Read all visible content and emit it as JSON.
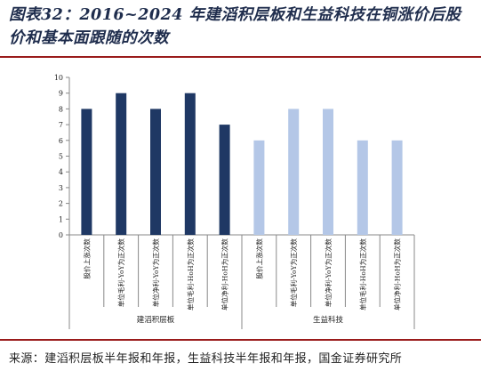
{
  "figure": {
    "title": "图表32：2016~2024 年建滔积层板和生益科技在铜涨价后股价和基本面跟随的次数",
    "source": "来源：建滔积层板半年报和年报，生益科技半年报和年报，国金证券研究所"
  },
  "chart_data": {
    "type": "bar",
    "title": "",
    "xlabel": "",
    "ylabel": "",
    "ylim": [
      0,
      10
    ],
    "yticks": [
      0,
      1,
      2,
      3,
      4,
      5,
      6,
      7,
      8,
      9,
      10
    ],
    "grid": false,
    "legend": "none",
    "groups": [
      {
        "name": "建滔积层板",
        "color": "#1f3864",
        "categories": [
          "股价上涨次数",
          "单位毛利-YoY为正次数",
          "单位净利-YoY为正次数",
          "单位毛利-HoH为正次数",
          "单位净利-HoH为正次数"
        ],
        "values": [
          8,
          9,
          8,
          9,
          7
        ]
      },
      {
        "name": "生益科技",
        "color": "#b4c7e7",
        "categories": [
          "股价上涨次数",
          "单位毛利-YoY为正次数",
          "单位净利-YoY为正次数",
          "单位毛利-HoH为正次数",
          "单位净利-HoH为正次数"
        ],
        "values": [
          6,
          8,
          8,
          6,
          6
        ]
      }
    ]
  }
}
